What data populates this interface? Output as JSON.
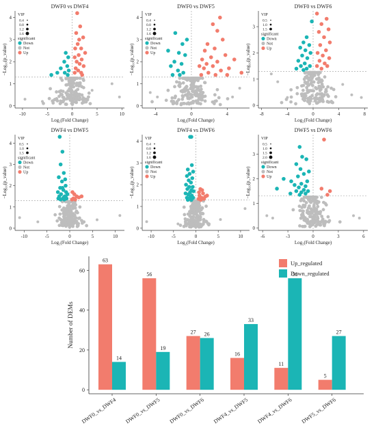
{
  "colors": {
    "up": "#F27C6D",
    "down": "#1BB5B5",
    "not": "#BDBDBD"
  },
  "chart_data": [
    {
      "type": "scatter",
      "title": "DWF0 vs DWF4",
      "xlabel": "Log₂(Fold Change)",
      "ylabel": "−Log₁₀(p_value)",
      "xticks": [
        "-10",
        "-5",
        "0",
        "5",
        "10"
      ],
      "xtick_values": [
        -10,
        -5,
        0,
        5,
        10
      ],
      "xlim": [
        -11.5,
        10.5
      ],
      "yticks": [
        "0",
        "1",
        "2",
        "3",
        "4"
      ],
      "ytick_values": [
        0,
        1,
        2,
        3,
        4
      ],
      "ylim": [
        -0.1,
        4.3
      ],
      "vip_sizes": [
        "0.4",
        "0.8",
        "1.2",
        "1.6"
      ],
      "legend_title_vip": "VIP",
      "legend_title_sig": "significant",
      "legend_labels": [
        "Down",
        "Not",
        "Up"
      ],
      "threshold_y": 1.3,
      "threshold_x": 0,
      "not_spread": 1.6,
      "not_xrange": 9,
      "up": [
        [
          1,
          4.2
        ],
        [
          1.6,
          3.6
        ],
        [
          0.8,
          3.3
        ],
        [
          1.4,
          3.0
        ],
        [
          2.2,
          3.1
        ],
        [
          1.1,
          2.8
        ],
        [
          1.8,
          2.6
        ],
        [
          0.6,
          2.6
        ],
        [
          2.6,
          2.4
        ],
        [
          1.3,
          2.3
        ],
        [
          0.5,
          2.2
        ],
        [
          1.9,
          2.1
        ],
        [
          0.9,
          2.0
        ],
        [
          1.5,
          1.9
        ],
        [
          2.3,
          1.8
        ],
        [
          0.7,
          1.7
        ],
        [
          1.2,
          1.6
        ],
        [
          1.8,
          1.5
        ],
        [
          0.5,
          1.5
        ],
        [
          2.0,
          1.4
        ]
      ],
      "down": [
        [
          -1.3,
          2.4
        ],
        [
          -0.8,
          2.2
        ],
        [
          -1.6,
          2.0
        ],
        [
          -1.0,
          1.8
        ],
        [
          -2.3,
          1.7
        ],
        [
          -0.7,
          1.6
        ],
        [
          -1.5,
          1.5
        ],
        [
          -3.0,
          1.5
        ],
        [
          -4.2,
          1.4
        ],
        [
          -0.9,
          1.4
        ]
      ],
      "not_extra": [
        [
          -9.5,
          0.3
        ],
        [
          8.0,
          1.0
        ],
        [
          9.5,
          0.4
        ],
        [
          -3.5,
          0.3
        ],
        [
          4.0,
          0.7
        ],
        [
          -6,
          0.2
        ]
      ]
    },
    {
      "type": "scatter",
      "title": "DWF0 vs DWF5",
      "xlabel": "Log₂(Fold Change)",
      "ylabel": "−Log₁₀(p_value)",
      "xticks": [
        "-4",
        "0",
        "4"
      ],
      "xtick_values": [
        -4,
        0,
        4
      ],
      "xlim": [
        -5.5,
        6.5
      ],
      "yticks": [
        "0",
        "1",
        "2",
        "3",
        "4"
      ],
      "ytick_values": [
        0,
        1,
        2,
        3,
        4
      ],
      "ylim": [
        -0.1,
        4.3
      ],
      "vip_sizes": [
        "0.4",
        "0.8",
        "1.2",
        "1.6"
      ],
      "legend_title_vip": "VIP",
      "legend_title_sig": "significant",
      "legend_labels": [
        "Down",
        "Not",
        "Up"
      ],
      "threshold_y": 1.3,
      "threshold_x": 0,
      "not_spread": 1.6,
      "not_xrange": 4.5,
      "up": [
        [
          3.2,
          4.0
        ],
        [
          2.4,
          3.7
        ],
        [
          2.9,
          3.4
        ],
        [
          3.5,
          3.0
        ],
        [
          1.8,
          2.8
        ],
        [
          2.6,
          2.6
        ],
        [
          1.5,
          2.5
        ],
        [
          3.8,
          2.3
        ],
        [
          2.2,
          2.2
        ],
        [
          1.2,
          2.1
        ],
        [
          4.8,
          2.1
        ],
        [
          2.9,
          2.0
        ],
        [
          1.7,
          1.9
        ],
        [
          0.9,
          1.8
        ],
        [
          2.4,
          1.8
        ],
        [
          4.2,
          1.7
        ],
        [
          1.4,
          1.7
        ],
        [
          3.3,
          1.6
        ],
        [
          5.6,
          1.5
        ],
        [
          1.9,
          1.5
        ],
        [
          2.7,
          1.4
        ],
        [
          1.1,
          1.4
        ],
        [
          4.0,
          1.4
        ]
      ],
      "down": [
        [
          -1.8,
          3.3
        ],
        [
          -0.5,
          3.0
        ],
        [
          -1.0,
          2.8
        ],
        [
          -2.6,
          2.5
        ],
        [
          -1.4,
          2.4
        ],
        [
          -0.7,
          2.3
        ],
        [
          -1.9,
          2.0
        ],
        [
          -1.1,
          1.9
        ],
        [
          -2.3,
          1.8
        ],
        [
          -1.5,
          1.6
        ],
        [
          -0.9,
          1.5
        ],
        [
          -2.1,
          1.4
        ],
        [
          -1.3,
          1.4
        ]
      ],
      "not_extra": [
        [
          -4.6,
          0.6
        ],
        [
          5.4,
          0.8
        ],
        [
          -3.8,
          0.4
        ],
        [
          4.6,
          0.4
        ]
      ]
    },
    {
      "type": "scatter",
      "title": "DWF0 vs DWF6",
      "xlabel": "Log₂(Fold Change)",
      "ylabel": "−Log₁₀(p_value)",
      "xticks": [
        "-8",
        "-4",
        "0",
        "4",
        "8"
      ],
      "xtick_values": [
        -8,
        -4,
        0,
        4,
        8
      ],
      "xlim": [
        -8.5,
        8.5
      ],
      "yticks": [
        "0",
        "1",
        "2",
        "3"
      ],
      "ytick_values": [
        0,
        1,
        2,
        3
      ],
      "ylim": [
        -0.1,
        3.6
      ],
      "vip_sizes": [
        "0.5",
        "1.0",
        "1.5"
      ],
      "legend_title_vip": "VIP",
      "legend_title_sig": "significant",
      "legend_labels": [
        "Down",
        "Not",
        "Up"
      ],
      "threshold_y": 1.3,
      "threshold_x": 0,
      "not_spread": 1.6,
      "not_xrange": 6,
      "up": [
        [
          0.6,
          3.5
        ],
        [
          2.1,
          3.3
        ],
        [
          1.3,
          3.1
        ],
        [
          2.4,
          2.9
        ],
        [
          0.9,
          2.8
        ],
        [
          1.7,
          2.6
        ],
        [
          2.6,
          2.4
        ],
        [
          1.1,
          2.3
        ],
        [
          2.0,
          2.1
        ],
        [
          0.7,
          2.0
        ],
        [
          1.5,
          1.9
        ],
        [
          2.5,
          1.8
        ],
        [
          1.0,
          1.7
        ],
        [
          1.8,
          1.6
        ],
        [
          0.6,
          1.5
        ],
        [
          2.2,
          1.5
        ],
        [
          1.3,
          1.4
        ]
      ],
      "down": [
        [
          -0.2,
          3.2
        ],
        [
          -1.0,
          2.6
        ],
        [
          -1.5,
          2.4
        ],
        [
          -0.6,
          2.3
        ],
        [
          -2.0,
          2.2
        ],
        [
          -1.2,
          2.1
        ],
        [
          -0.4,
          2.0
        ],
        [
          -1.7,
          1.9
        ],
        [
          -0.9,
          1.8
        ],
        [
          -2.3,
          1.7
        ],
        [
          -1.3,
          1.6
        ],
        [
          -0.5,
          1.5
        ],
        [
          -1.9,
          1.5
        ],
        [
          -1.0,
          1.4
        ],
        [
          -2.6,
          1.4
        ],
        [
          -1.5,
          1.35
        ]
      ],
      "not_extra": [
        [
          -6.5,
          1.2
        ],
        [
          -5.5,
          0.9
        ],
        [
          6.0,
          0.4
        ],
        [
          -4,
          0.3
        ],
        [
          4.6,
          0.8
        ],
        [
          7.5,
          0.3
        ]
      ]
    },
    {
      "type": "scatter",
      "title": "DWF4 vs DWF5",
      "xlabel": "Log₂(Fold Change)",
      "ylabel": "−Log₁₀(p_value)",
      "xticks": [
        "-10",
        "-5",
        "0",
        "5",
        "10"
      ],
      "xtick_values": [
        -10,
        -5,
        0,
        5,
        10
      ],
      "xlim": [
        -12,
        12
      ],
      "yticks": [
        "0",
        "1",
        "2",
        "3",
        "4"
      ],
      "ytick_values": [
        0,
        1,
        2,
        3,
        4
      ],
      "ylim": [
        -0.1,
        4.4
      ],
      "vip_sizes": [
        "0.5",
        "1.0",
        "1.5"
      ],
      "legend_title_vip": "VIP",
      "legend_title_sig": "significant",
      "legend_labels": [
        "Down",
        "Not",
        "Up"
      ],
      "threshold_y": 1.3,
      "threshold_x": 0,
      "not_spread": 1.4,
      "not_xrange": 5,
      "up": [
        [
          0.6,
          1.7
        ],
        [
          1.0,
          1.6
        ],
        [
          1.5,
          1.5
        ],
        [
          0.8,
          1.4
        ],
        [
          2.0,
          1.45
        ],
        [
          1.2,
          1.35
        ],
        [
          2.6,
          1.5
        ],
        [
          0.5,
          1.35
        ]
      ],
      "down": [
        [
          -2.2,
          4.3
        ],
        [
          -1.6,
          3.6
        ],
        [
          -2.0,
          3.0
        ],
        [
          -1.3,
          2.6
        ],
        [
          -2.4,
          2.4
        ],
        [
          -1.7,
          2.2
        ],
        [
          -0.9,
          2.0
        ],
        [
          -2.1,
          1.9
        ],
        [
          -1.4,
          1.8
        ],
        [
          -0.8,
          1.7
        ],
        [
          -2.6,
          1.7
        ],
        [
          -1.9,
          1.6
        ],
        [
          -1.1,
          1.5
        ],
        [
          -2.3,
          1.5
        ],
        [
          -1.5,
          1.4
        ],
        [
          -0.7,
          1.4
        ],
        [
          -1.2,
          1.35
        ],
        [
          -2.0,
          1.35
        ],
        [
          -0.5,
          1.6
        ],
        [
          -1.0,
          2.3
        ],
        [
          -1.6,
          1.9
        ],
        [
          -0.9,
          1.5
        ],
        [
          -1.3,
          1.45
        ],
        [
          -2.5,
          1.4
        ]
      ],
      "not_extra": [
        [
          -11,
          0.5
        ],
        [
          11,
          0.6
        ],
        [
          -7,
          0.3
        ],
        [
          6,
          0.4
        ]
      ]
    },
    {
      "type": "scatter",
      "title": "DWF4 vs DWF6",
      "xlabel": "Log₂(Fold Change)",
      "ylabel": "−Log₁₀(p_value)",
      "xticks": [
        "-10",
        "-5",
        "0",
        "5",
        "10"
      ],
      "xtick_values": [
        -10,
        -5,
        0,
        5,
        10
      ],
      "xlim": [
        -12,
        12
      ],
      "yticks": [
        "0",
        "1",
        "2",
        "3",
        "4"
      ],
      "ytick_values": [
        0,
        1,
        2,
        3,
        4
      ],
      "ylim": [
        -0.1,
        4.3
      ],
      "vip_sizes": [
        "0.4",
        "0.8",
        "1.2",
        "1.6"
      ],
      "legend_title_vip": "VIP",
      "legend_title_sig": "significant",
      "legend_labels": [
        "Down",
        "Not",
        "Up"
      ],
      "threshold_y": 1.3,
      "threshold_x": 0,
      "not_spread": 1.3,
      "not_xrange": 5,
      "up": [
        [
          1.0,
          1.8
        ],
        [
          1.6,
          1.6
        ],
        [
          0.8,
          1.5
        ],
        [
          2.1,
          1.45
        ],
        [
          1.3,
          1.4
        ],
        [
          0.6,
          1.35
        ],
        [
          1.8,
          1.35
        ],
        [
          1.1,
          1.3
        ],
        [
          2.5,
          1.5
        ],
        [
          0.7,
          1.65
        ],
        [
          1.4,
          1.75
        ]
      ],
      "down": [
        [
          -1.3,
          4.2
        ],
        [
          -1.0,
          4.2
        ],
        [
          -0.9,
          2.9
        ],
        [
          -1.8,
          2.7
        ],
        [
          -0.6,
          2.6
        ],
        [
          -1.4,
          2.5
        ],
        [
          -2.0,
          2.4
        ],
        [
          -0.8,
          2.3
        ],
        [
          -1.6,
          2.2
        ],
        [
          -1.1,
          2.1
        ],
        [
          -2.2,
          2.0
        ],
        [
          -0.7,
          1.9
        ],
        [
          -1.5,
          1.9
        ],
        [
          -1.9,
          1.8
        ],
        [
          -1.0,
          1.75
        ],
        [
          -0.5,
          1.7
        ],
        [
          -1.3,
          1.65
        ],
        [
          -2.3,
          1.6
        ],
        [
          -1.7,
          1.55
        ],
        [
          -0.9,
          1.5
        ],
        [
          -1.2,
          1.45
        ],
        [
          -2.0,
          1.4
        ],
        [
          -0.6,
          1.4
        ],
        [
          -1.5,
          1.35
        ],
        [
          -1.0,
          1.3
        ],
        [
          -1.8,
          1.3
        ]
      ],
      "not_extra": [
        [
          -11,
          0.3
        ],
        [
          11,
          0.9
        ],
        [
          -4,
          0.2
        ],
        [
          5.5,
          0.4
        ]
      ]
    },
    {
      "type": "scatter",
      "title": "DWF5 vs DWF6",
      "xlabel": "Log₂(Fold Change)",
      "ylabel": "−Log₁₀(p_value)",
      "xticks": [
        "-6",
        "-3",
        "0",
        "3",
        "6"
      ],
      "xtick_values": [
        -6,
        -3,
        0,
        3,
        6
      ],
      "xlim": [
        -6.5,
        6.5
      ],
      "yticks": [
        "0",
        "1",
        "2",
        "3"
      ],
      "ytick_values": [
        0,
        1,
        2,
        3
      ],
      "ylim": [
        -0.1,
        3.8
      ],
      "vip_sizes": [
        "0.5",
        "1.0",
        "1.5",
        "2.0"
      ],
      "legend_title_vip": "VIP",
      "legend_title_sig": "significant",
      "legend_labels": [
        "Down",
        "Not",
        "Up"
      ],
      "threshold_y": 1.3,
      "threshold_x": 0,
      "not_spread": 1.6,
      "not_xrange": 4,
      "up": [
        [
          1.3,
          3.6
        ],
        [
          1.0,
          1.6
        ],
        [
          2.0,
          1.5
        ],
        [
          1.7,
          1.35
        ]
      ],
      "down": [
        [
          -1.6,
          3.3
        ],
        [
          -1.3,
          2.9
        ],
        [
          -0.8,
          2.8
        ],
        [
          -2.0,
          2.6
        ],
        [
          -1.5,
          2.4
        ],
        [
          -0.5,
          2.3
        ],
        [
          -1.1,
          2.2
        ],
        [
          -1.8,
          2.1
        ],
        [
          -3.5,
          2.0
        ],
        [
          -2.6,
          1.9
        ],
        [
          -0.7,
          1.9
        ],
        [
          -1.4,
          1.8
        ],
        [
          -2.2,
          1.75
        ],
        [
          -0.9,
          1.7
        ],
        [
          -1.7,
          1.65
        ],
        [
          -4.3,
          1.6
        ],
        [
          -1.1,
          1.55
        ],
        [
          -2.0,
          1.5
        ],
        [
          -0.6,
          1.5
        ],
        [
          -1.4,
          1.45
        ],
        [
          -2.7,
          1.4
        ],
        [
          -0.9,
          1.4
        ],
        [
          -1.6,
          1.35
        ]
      ],
      "not_extra": [
        [
          -5.5,
          0.5
        ],
        [
          5.5,
          0.4
        ],
        [
          -4.8,
          0.4
        ],
        [
          4.8,
          0.5
        ]
      ]
    },
    {
      "type": "bar",
      "title": "",
      "xlabel": "",
      "ylabel": "Number of DEMs",
      "categories": [
        "DWF0_vs_DWF4",
        "DWF0_vs_DWF5",
        "DWF0_vs_DWF6",
        "DWF4_vs_DWF5",
        "DWF4_vs_DWF6",
        "DWF5_vs_DWF6"
      ],
      "series": [
        {
          "name": "Up_regulated",
          "values": [
            63,
            56,
            27,
            16,
            11,
            5
          ]
        },
        {
          "name": "Down_regulated",
          "values": [
            14,
            19,
            26,
            33,
            56,
            27
          ]
        }
      ],
      "ylim": [
        -2,
        67
      ],
      "yticks": [
        "0",
        "20",
        "40",
        "60"
      ],
      "ytick_values": [
        0,
        20,
        40,
        60
      ],
      "legend": "top-right"
    }
  ]
}
